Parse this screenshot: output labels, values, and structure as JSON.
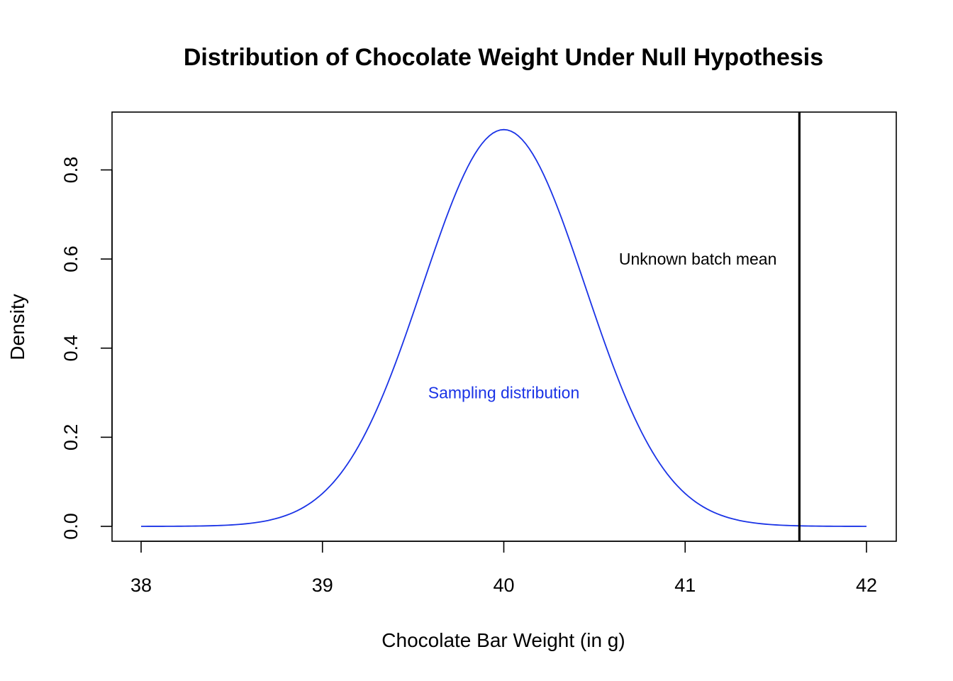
{
  "chart_data": {
    "type": "line",
    "title": "Distribution of Chocolate Weight Under Null Hypothesis",
    "xlabel": "Chocolate Bar Weight (in g)",
    "ylabel": "Density",
    "xlim": [
      38,
      42
    ],
    "ylim": [
      0,
      0.89
    ],
    "x_ticks": [
      38,
      39,
      40,
      41,
      42
    ],
    "x_tick_labels": [
      "38",
      "39",
      "40",
      "41",
      "42"
    ],
    "y_ticks": [
      0,
      0.2,
      0.4,
      0.6,
      0.8
    ],
    "y_tick_labels": [
      "0.0",
      "0.2",
      "0.4",
      "0.6",
      "0.8"
    ],
    "grid": false,
    "series": [
      {
        "type": "normal_density",
        "mean": 40,
        "sd": 0.448,
        "x_range": [
          38,
          42
        ],
        "color": "#1a33e6"
      }
    ],
    "vertical_line": {
      "x": 41.63,
      "color": "#000000"
    },
    "annotations": [
      {
        "text": "Sampling distribution",
        "x": 40,
        "y": 0.3,
        "color": "#1a33e6"
      },
      {
        "text": "Unknown batch mean",
        "x": 41.07,
        "y": 0.6,
        "color": "#000000"
      }
    ]
  }
}
